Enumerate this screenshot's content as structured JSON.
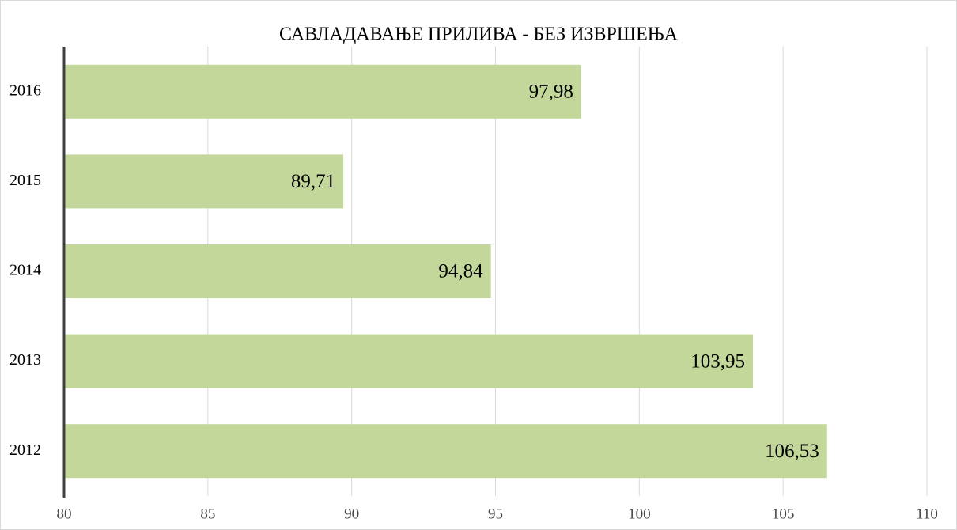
{
  "chart_data": {
    "type": "bar",
    "orientation": "horizontal",
    "title": "САВЛАДАВАЊЕ ПРИЛИВА - БЕЗ ИЗВРШЕЊА",
    "categories": [
      "2016",
      "2015",
      "2014",
      "2013",
      "2012"
    ],
    "values": [
      97.98,
      89.71,
      94.84,
      103.95,
      106.53
    ],
    "value_labels": [
      "97,98",
      "89,71",
      "94,84",
      "103,95",
      "106,53"
    ],
    "color": "#c4d79b",
    "xlim": [
      80,
      110
    ],
    "xticks": [
      80,
      85,
      90,
      95,
      100,
      105,
      110
    ],
    "grid": true
  }
}
